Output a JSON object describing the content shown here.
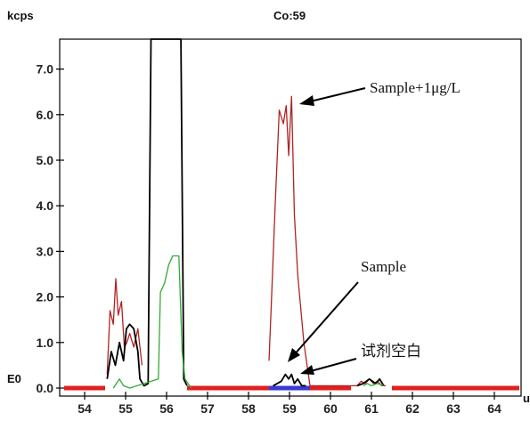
{
  "chart_data": {
    "type": "line",
    "title": "Co:59",
    "ylabel": "kcps",
    "xlabel": "u",
    "baseline_label": "E0",
    "xlim": [
      53.5,
      64.9
    ],
    "ylim": [
      0,
      7.7
    ],
    "x_ticks": [
      54,
      55,
      56,
      57,
      58,
      59,
      60,
      61,
      62,
      63,
      64
    ],
    "x_tick_labels": [
      "54",
      "55",
      "56",
      "57",
      "58",
      "59",
      "60",
      "61",
      "62",
      "63",
      "64"
    ],
    "y_ticks": [
      0,
      1,
      2,
      3,
      4,
      5,
      6,
      7
    ],
    "y_tick_labels": [
      "0.0",
      "1.0",
      "2.0",
      "3.0",
      "4.0",
      "5.0",
      "6.0",
      "7.0"
    ],
    "series": [
      {
        "name": "Sample+1μg/L",
        "color": "#b22222",
        "x": [
          54.55,
          54.62,
          54.7,
          54.76,
          54.82,
          54.9,
          54.97,
          55.03,
          55.1,
          55.2,
          55.3,
          55.4,
          58.5,
          58.55,
          58.65,
          58.75,
          58.85,
          58.92,
          58.98,
          59.05,
          59.12,
          59.2,
          59.35,
          59.5,
          60.65,
          60.75,
          60.85,
          60.95,
          61.05,
          61.15,
          61.25,
          61.35
        ],
        "values": [
          0.3,
          1.7,
          1.4,
          2.4,
          1.6,
          1.9,
          0.9,
          1.0,
          1.2,
          0.9,
          1.3,
          0.5,
          0.6,
          1.7,
          4.0,
          6.1,
          5.8,
          6.2,
          5.1,
          6.4,
          3.8,
          2.5,
          1.0,
          0.05,
          0.05,
          0.15,
          0.1,
          0.2,
          0.1,
          0.15,
          0.05,
          0.05
        ]
      },
      {
        "name": "Sample",
        "color": "#000000",
        "x": [
          54.55,
          54.65,
          54.75,
          54.85,
          54.95,
          55.02,
          55.1,
          55.2,
          55.3,
          55.35,
          55.45,
          55.55,
          55.62,
          56.35,
          56.42,
          56.5,
          58.6,
          58.7,
          58.8,
          58.9,
          58.98,
          59.05,
          59.12,
          59.2,
          59.3,
          59.4,
          60.65,
          60.8,
          60.95,
          61.1,
          61.2,
          61.3
        ],
        "values": [
          0.2,
          0.8,
          0.5,
          1.0,
          0.6,
          1.3,
          1.4,
          1.3,
          0.8,
          0.2,
          0.05,
          0.1,
          9.0,
          9.0,
          0.2,
          0.05,
          0.05,
          0.1,
          0.15,
          0.3,
          0.2,
          0.3,
          0.1,
          0.2,
          0.05,
          0.05,
          0.05,
          0.1,
          0.2,
          0.1,
          0.2,
          0.05
        ]
      },
      {
        "name": "试剂空白",
        "color": "#33aa33",
        "x": [
          54.7,
          54.85,
          54.95,
          55.1,
          55.8,
          55.85,
          55.95,
          56.05,
          56.15,
          56.2,
          56.3,
          56.38,
          56.45,
          56.6,
          60.8,
          60.9,
          61.0,
          61.15,
          61.3
        ],
        "values": [
          0.0,
          0.2,
          0.05,
          0.0,
          0.2,
          2.1,
          2.3,
          2.7,
          2.9,
          2.9,
          2.9,
          0.8,
          0.2,
          0.0,
          0.05,
          0.1,
          0.05,
          0.1,
          0.05
        ]
      }
    ],
    "red_segments": [
      [
        53.5,
        54.5
      ],
      [
        56.5,
        58.5
      ],
      [
        59.5,
        60.5
      ],
      [
        61.5,
        64.7
      ]
    ],
    "blue_segment": [
      58.5,
      59.5
    ],
    "annotations": [
      {
        "text": "Sample+1μg/L"
      },
      {
        "text": "Sample"
      },
      {
        "text": "试剂空白"
      }
    ]
  }
}
